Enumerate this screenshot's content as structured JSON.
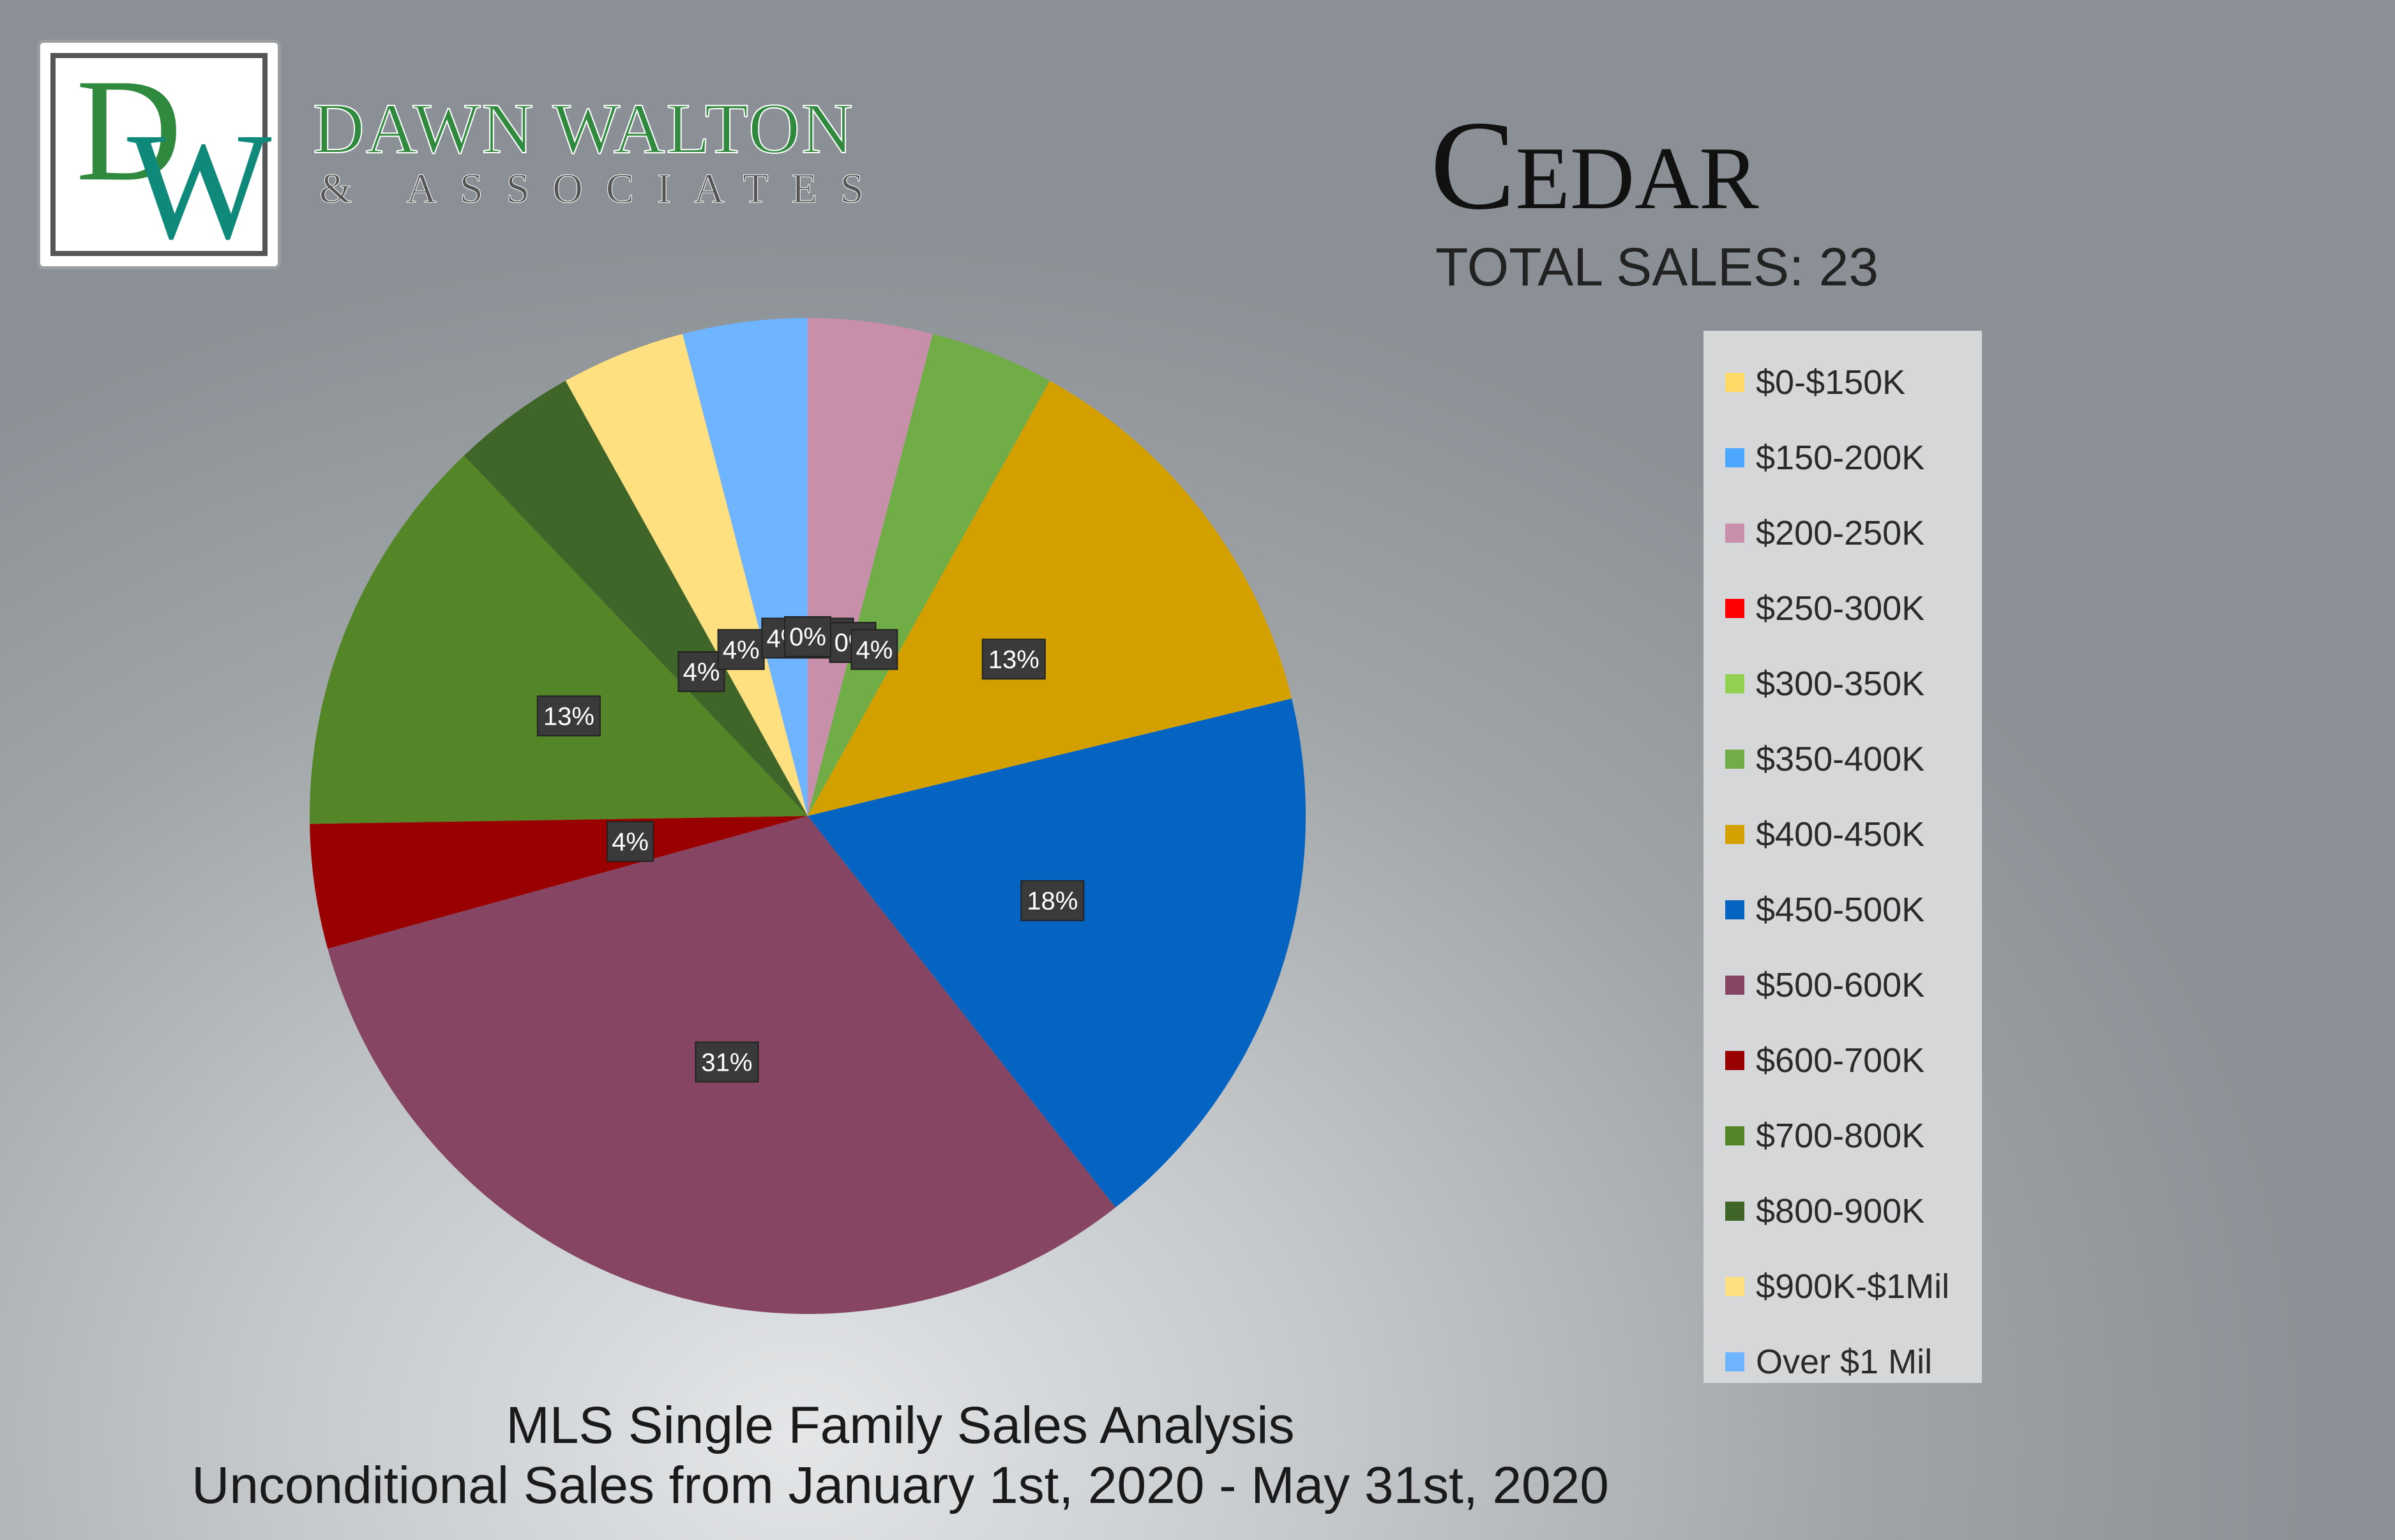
{
  "brand": {
    "logo_d": "D",
    "logo_w": "W",
    "name": "DAWN WALTON",
    "sub": "& ASSOCIATES"
  },
  "header": {
    "title": "Cedar",
    "total_sales": "TOTAL SALES: 23"
  },
  "footer": {
    "line1": "MLS Single Family Sales Analysis",
    "line2": "Unconditional Sales from January 1st, 2020 - May 31st, 2020"
  },
  "chart_data": {
    "type": "pie",
    "start_angle_deg": 0,
    "direction": "clockwise",
    "legend_position": "right",
    "slices": [
      {
        "label": "$200-250K",
        "value": 4,
        "display": "4%",
        "color": "#c88fab"
      },
      {
        "label": "$250-300K",
        "value": 0,
        "display": "0%",
        "color": "#ff0000"
      },
      {
        "label": "$300-350K",
        "value": 0,
        "display": "0%",
        "color": "#92d050"
      },
      {
        "label": "$350-400K",
        "value": 4,
        "display": "4%",
        "color": "#70ad47"
      },
      {
        "label": "$400-450K",
        "value": 13,
        "display": "13%",
        "color": "#d4a000"
      },
      {
        "label": "$450-500K",
        "value": 18,
        "display": "18%",
        "color": "#0563c1"
      },
      {
        "label": "$500-600K",
        "value": 31,
        "display": "31%",
        "color": "#864562"
      },
      {
        "label": "$600-700K",
        "value": 4,
        "display": "4%",
        "color": "#990000"
      },
      {
        "label": "$700-800K",
        "value": 13,
        "display": "13%",
        "color": "#548628"
      },
      {
        "label": "$800-900K",
        "value": 4,
        "display": "4%",
        "color": "#3f6628"
      },
      {
        "label": "$900K-$1Mil",
        "value": 4,
        "display": "4%",
        "color": "#ffe080"
      },
      {
        "label": "Over $1 Mil",
        "value": 4,
        "display": "4%",
        "color": "#6fb4ff"
      },
      {
        "label": "$0-$150K",
        "value": 0,
        "display": "0%",
        "color": "#ffd966"
      },
      {
        "label": "$150-200K",
        "value": 0,
        "display": "0%",
        "color": "#4da6ff"
      }
    ],
    "legend": [
      {
        "label": "$0-$150K",
        "color": "#ffd966"
      },
      {
        "label": "$150-200K",
        "color": "#4da6ff"
      },
      {
        "label": "$200-250K",
        "color": "#c88fab"
      },
      {
        "label": "$250-300K",
        "color": "#ff0000"
      },
      {
        "label": "$300-350K",
        "color": "#92d050"
      },
      {
        "label": "$350-400K",
        "color": "#70ad47"
      },
      {
        "label": "$400-450K",
        "color": "#d4a000"
      },
      {
        "label": "$450-500K",
        "color": "#0563c1"
      },
      {
        "label": "$500-600K",
        "color": "#864562"
      },
      {
        "label": "$600-700K",
        "color": "#990000"
      },
      {
        "label": "$700-800K",
        "color": "#548628"
      },
      {
        "label": "$800-900K",
        "color": "#3f6628"
      },
      {
        "label": "$900K-$1Mil",
        "color": "#ffe080"
      },
      {
        "label": "Over $1 Mil",
        "color": "#6fb4ff"
      }
    ]
  }
}
